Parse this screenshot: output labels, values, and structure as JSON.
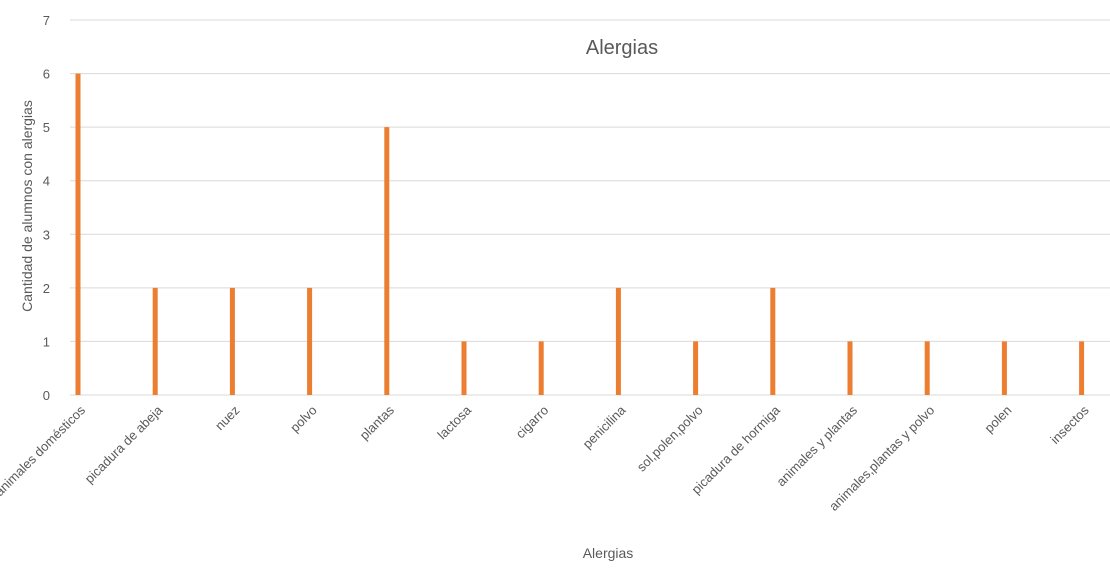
{
  "chart_data": {
    "type": "bar",
    "title": "Alergias",
    "xlabel": "Alergias",
    "ylabel": "Cantidad de alumnos con alergias",
    "categories": [
      "animales domésticos",
      "picadura de abeja",
      "nuez",
      "polvo",
      "plantas",
      "lactosa",
      "cigarro",
      "penicilina",
      "sol,polen,polvo",
      "picadura de hormiga",
      "animales y plantas",
      "animales,plantas y polvo",
      "polen",
      "insectos"
    ],
    "values": [
      6,
      2,
      2,
      2,
      5,
      1,
      1,
      2,
      1,
      2,
      1,
      1,
      1,
      1
    ],
    "yticks": [
      "0",
      "1",
      "2",
      "3",
      "4",
      "5",
      "6",
      "7"
    ],
    "ylim": [
      0,
      7
    ],
    "grid": true,
    "legend": "none",
    "bar_color": "#ED7D31",
    "grid_color": "#D9D9D9",
    "text_color": "#595959"
  }
}
